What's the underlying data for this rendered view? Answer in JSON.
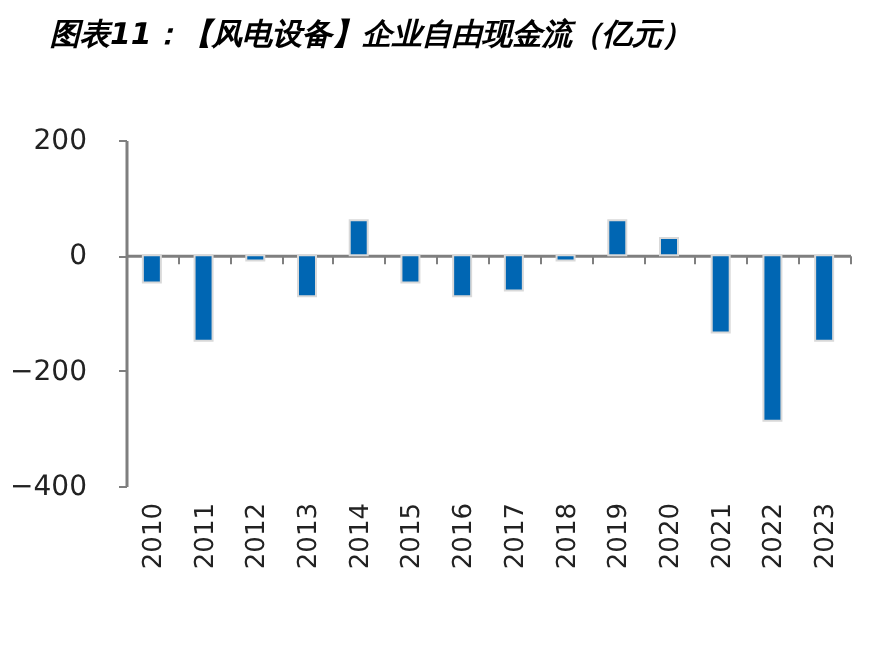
{
  "chart_data": {
    "type": "bar",
    "title": "图表11：【风电设备】企业自由现金流（亿元）",
    "categories": [
      "2010",
      "2011",
      "2012",
      "2013",
      "2014",
      "2015",
      "2016",
      "2017",
      "2018",
      "2019",
      "2020",
      "2021",
      "2022",
      "2023"
    ],
    "values": [
      -47,
      -148,
      -9,
      -71,
      61,
      -47,
      -71,
      -61,
      -9,
      61,
      30,
      -134,
      -287,
      -148
    ],
    "color": "#0066b3",
    "ylim": [
      -400,
      200
    ],
    "yticks": [
      -400,
      -200,
      0,
      200
    ]
  }
}
